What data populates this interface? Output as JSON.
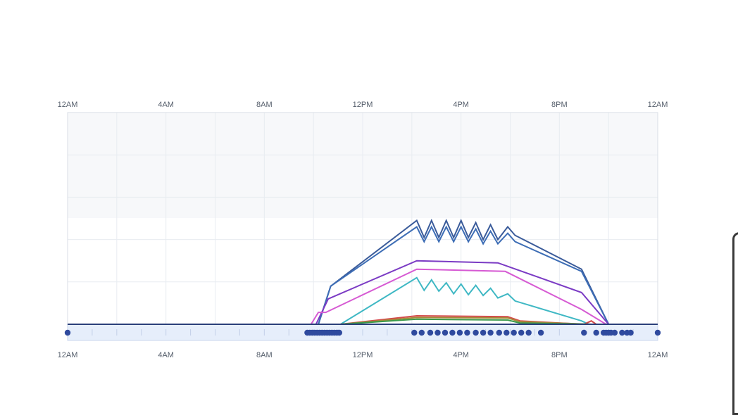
{
  "chart_data": {
    "type": "line",
    "x_unit": "hour of day",
    "xlim": [
      0,
      24
    ],
    "ylim": [
      0,
      5
    ],
    "grid": true,
    "x_ticks": [
      {
        "value": 0,
        "label": "12AM"
      },
      {
        "value": 4,
        "label": "4AM"
      },
      {
        "value": 8,
        "label": "8AM"
      },
      {
        "value": 12,
        "label": "12PM"
      },
      {
        "value": 16,
        "label": "4PM"
      },
      {
        "value": 20,
        "label": "8PM"
      },
      {
        "value": 24,
        "label": "12AM"
      }
    ],
    "series": [
      {
        "color": "#3a5b9a",
        "points": [
          [
            0,
            0
          ],
          [
            10.2,
            0
          ],
          [
            10.7,
            0.9
          ],
          [
            14.2,
            2.45
          ],
          [
            14.5,
            2.05
          ],
          [
            14.8,
            2.45
          ],
          [
            15.1,
            2.05
          ],
          [
            15.4,
            2.45
          ],
          [
            15.7,
            2.05
          ],
          [
            16.0,
            2.45
          ],
          [
            16.3,
            2.05
          ],
          [
            16.6,
            2.4
          ],
          [
            16.9,
            2.0
          ],
          [
            17.2,
            2.35
          ],
          [
            17.5,
            2.0
          ],
          [
            17.9,
            2.3
          ],
          [
            18.2,
            2.1
          ],
          [
            20.9,
            1.3
          ],
          [
            22.0,
            0
          ],
          [
            24,
            0
          ]
        ]
      },
      {
        "color": "#3d6db5",
        "points": [
          [
            0,
            0
          ],
          [
            10.2,
            0
          ],
          [
            10.7,
            0.9
          ],
          [
            14.2,
            2.3
          ],
          [
            14.5,
            1.95
          ],
          [
            14.8,
            2.3
          ],
          [
            15.1,
            1.95
          ],
          [
            15.4,
            2.3
          ],
          [
            15.7,
            1.95
          ],
          [
            16.0,
            2.3
          ],
          [
            16.3,
            1.95
          ],
          [
            16.6,
            2.25
          ],
          [
            16.9,
            1.9
          ],
          [
            17.2,
            2.2
          ],
          [
            17.5,
            1.9
          ],
          [
            17.9,
            2.15
          ],
          [
            18.2,
            1.95
          ],
          [
            20.9,
            1.25
          ],
          [
            22.0,
            0
          ],
          [
            24,
            0
          ]
        ]
      },
      {
        "color": "#7b3bc4",
        "points": [
          [
            0,
            0
          ],
          [
            10.1,
            0
          ],
          [
            10.6,
            0.6
          ],
          [
            14.2,
            1.5
          ],
          [
            17.5,
            1.45
          ],
          [
            20.9,
            0.75
          ],
          [
            22.0,
            0
          ],
          [
            24,
            0
          ]
        ]
      },
      {
        "color": "#d65ad3",
        "points": [
          [
            0,
            0
          ],
          [
            9.9,
            0
          ],
          [
            10.2,
            0.28
          ],
          [
            10.5,
            0.28
          ],
          [
            14.2,
            1.3
          ],
          [
            17.8,
            1.25
          ],
          [
            20.9,
            0.35
          ],
          [
            21.9,
            0
          ],
          [
            24,
            0
          ]
        ]
      },
      {
        "color": "#3fb8c4",
        "points": [
          [
            0,
            0
          ],
          [
            11.1,
            0
          ],
          [
            14.2,
            1.1
          ],
          [
            14.5,
            0.8
          ],
          [
            14.8,
            1.05
          ],
          [
            15.1,
            0.78
          ],
          [
            15.4,
            0.98
          ],
          [
            15.7,
            0.72
          ],
          [
            16.0,
            0.95
          ],
          [
            16.3,
            0.7
          ],
          [
            16.6,
            0.92
          ],
          [
            16.9,
            0.68
          ],
          [
            17.2,
            0.85
          ],
          [
            17.5,
            0.62
          ],
          [
            17.9,
            0.72
          ],
          [
            18.2,
            0.55
          ],
          [
            20.9,
            0.08
          ],
          [
            21.2,
            0
          ],
          [
            24,
            0
          ]
        ]
      },
      {
        "color": "#d44a4a",
        "points": [
          [
            0,
            0
          ],
          [
            11.1,
            0
          ],
          [
            14.2,
            0.2
          ],
          [
            17.9,
            0.18
          ],
          [
            18.4,
            0.08
          ],
          [
            21.0,
            0.0
          ],
          [
            21.3,
            0.08
          ],
          [
            21.5,
            0
          ],
          [
            24,
            0
          ]
        ]
      },
      {
        "color": "#a58a3a",
        "points": [
          [
            0,
            0
          ],
          [
            11.1,
            0
          ],
          [
            14.2,
            0.16
          ],
          [
            17.9,
            0.15
          ],
          [
            18.4,
            0.06
          ],
          [
            21.3,
            0
          ],
          [
            24,
            0
          ]
        ]
      },
      {
        "color": "#3a9a4a",
        "points": [
          [
            0,
            0
          ],
          [
            11.1,
            0
          ],
          [
            14.2,
            0.12
          ],
          [
            17.9,
            0.1
          ],
          [
            18.4,
            0.03
          ],
          [
            21.3,
            0
          ],
          [
            24,
            0
          ]
        ]
      },
      {
        "color": "#2a3f7a",
        "points": [
          [
            0,
            0
          ],
          [
            24,
            0
          ]
        ]
      }
    ],
    "event_markers": [
      0.0,
      9.75,
      9.85,
      9.95,
      10.05,
      10.15,
      10.25,
      10.35,
      10.45,
      10.55,
      10.65,
      10.75,
      10.85,
      10.95,
      11.05,
      14.1,
      14.4,
      14.75,
      15.05,
      15.35,
      15.65,
      15.95,
      16.25,
      16.6,
      16.9,
      17.2,
      17.55,
      17.85,
      18.15,
      18.45,
      18.75,
      19.25,
      21.0,
      21.5,
      21.8,
      21.9,
      22.0,
      22.1,
      22.25,
      22.55,
      22.75,
      22.9,
      24.0
    ],
    "marker_color": "#2f4a9e"
  }
}
